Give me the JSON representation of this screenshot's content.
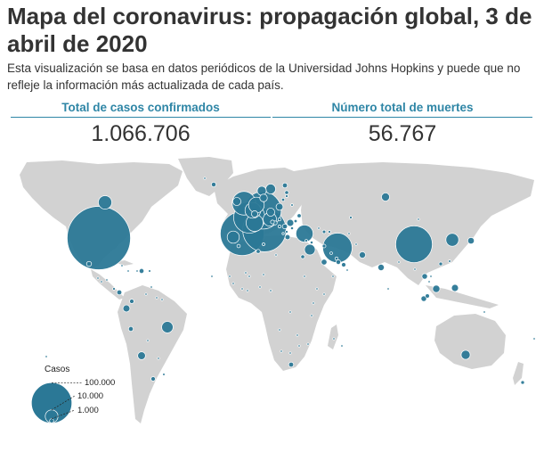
{
  "header": {
    "title": "Mapa del coronavirus: propagación global, 3 de abril de 2020",
    "subtitle": "Esta visualización se basa en datos periódicos de la Universidad Johns Hopkins y puede que no refleje la información más actualizada de cada país."
  },
  "stats": [
    {
      "label": "Total de casos confirmados",
      "value": "1.066.706"
    },
    {
      "label": "Número total de muertes",
      "value": "56.767"
    }
  ],
  "legend": {
    "title": "Casos",
    "items": [
      {
        "label": "100.000",
        "cases": 100000
      },
      {
        "label": "10.000",
        "cases": 10000
      },
      {
        "label": "1.000",
        "cases": 1000
      }
    ]
  },
  "colors": {
    "land": "#d2d2d2",
    "bubble": "#2b7896",
    "bubble_stroke": "#ffffff",
    "accent": "#2f86a6"
  },
  "map_data": {
    "projection": "equirectangular",
    "bubbles": [
      {
        "id": "usa",
        "cases": 245000
      },
      {
        "id": "italy",
        "cases": 115000
      },
      {
        "id": "spain",
        "cases": 117000
      },
      {
        "id": "germany",
        "cases": 85000
      },
      {
        "id": "china",
        "cases": 82000
      },
      {
        "id": "france",
        "cases": 60000
      },
      {
        "id": "iran",
        "cases": 53000
      },
      {
        "id": "uk",
        "cases": 34000
      },
      {
        "id": "switzerland",
        "cases": 18000
      },
      {
        "id": "turkey",
        "cases": 18000
      },
      {
        "id": "belgium",
        "cases": 15000
      },
      {
        "id": "netherlands",
        "cases": 15000
      },
      {
        "id": "canada",
        "cases": 11000
      },
      {
        "id": "austria",
        "cases": 11000
      },
      {
        "id": "south-korea",
        "cases": 10000
      },
      {
        "id": "portugal",
        "cases": 9000
      },
      {
        "id": "brazil",
        "cases": 8000
      },
      {
        "id": "israel",
        "cases": 7000
      },
      {
        "id": "sweden",
        "cases": 6000
      },
      {
        "id": "norway",
        "cases": 5000
      },
      {
        "id": "australia",
        "cases": 5000
      },
      {
        "id": "russia",
        "cases": 4000
      },
      {
        "id": "ireland",
        "cases": 4000
      },
      {
        "id": "czechia",
        "cases": 4000
      },
      {
        "id": "chile",
        "cases": 3700
      },
      {
        "id": "denmark",
        "cases": 3500
      },
      {
        "id": "poland",
        "cases": 3000
      },
      {
        "id": "ecuador",
        "cases": 3000
      },
      {
        "id": "romania",
        "cases": 3000
      },
      {
        "id": "japan",
        "cases": 2600
      },
      {
        "id": "malaysia",
        "cases": 3300
      },
      {
        "id": "philippines",
        "cases": 3000
      },
      {
        "id": "pakistan",
        "cases": 2500
      },
      {
        "id": "india",
        "cases": 2500
      },
      {
        "id": "saudi-arabia",
        "cases": 2000
      },
      {
        "id": "indonesia",
        "cases": 1900
      },
      {
        "id": "thailand",
        "cases": 1900
      },
      {
        "id": "finland",
        "cases": 1500
      },
      {
        "id": "greece",
        "cases": 1600
      },
      {
        "id": "mexico",
        "cases": 1500
      },
      {
        "id": "south-africa",
        "cases": 1500
      },
      {
        "id": "peru",
        "cases": 1400
      },
      {
        "id": "panama",
        "cases": 1500
      },
      {
        "id": "dominican-republic",
        "cases": 1400
      },
      {
        "id": "argentina",
        "cases": 1200
      },
      {
        "id": "iceland",
        "cases": 1300
      },
      {
        "id": "serbia",
        "cases": 1500
      },
      {
        "id": "colombia",
        "cases": 1200
      },
      {
        "id": "egypt",
        "cases": 900
      },
      {
        "id": "algeria",
        "cases": 1000
      },
      {
        "id": "uae",
        "cases": 1200
      },
      {
        "id": "qatar",
        "cases": 1300
      },
      {
        "id": "morocco",
        "cases": 700
      },
      {
        "id": "ukraine",
        "cases": 1000
      },
      {
        "id": "new-zealand",
        "cases": 800
      },
      {
        "id": "singapore",
        "cases": 1100
      },
      {
        "id": "croatia",
        "cases": 1000
      },
      {
        "id": "estonia",
        "cases": 900
      },
      {
        "id": "slovenia",
        "cases": 900
      },
      {
        "id": "hungary",
        "cases": 600
      },
      {
        "id": "bulgaria",
        "cases": 500
      },
      {
        "id": "belarus",
        "cases": 350
      },
      {
        "id": "lithuania",
        "cases": 600
      },
      {
        "id": "latvia",
        "cases": 450
      },
      {
        "id": "kazakhstan",
        "cases": 400
      },
      {
        "id": "iraq",
        "cases": 800
      },
      {
        "id": "lebanon",
        "cases": 500
      },
      {
        "id": "bahrain",
        "cases": 600
      },
      {
        "id": "kuwait",
        "cases": 400
      },
      {
        "id": "oman",
        "cases": 250
      },
      {
        "id": "hong-kong",
        "cases": 800
      },
      {
        "id": "taiwan",
        "cases": 350
      },
      {
        "id": "vietnam",
        "cases": 230
      },
      {
        "id": "cuba",
        "cases": 250
      },
      {
        "id": "puerto-rico",
        "cases": 380
      },
      {
        "id": "venezuela",
        "cases": 150
      },
      {
        "id": "costa-rica",
        "cases": 400
      },
      {
        "id": "honduras",
        "cases": 200
      },
      {
        "id": "bolivia",
        "cases": 130
      },
      {
        "id": "uruguay",
        "cases": 350
      },
      {
        "id": "paraguay",
        "cases": 90
      },
      {
        "id": "tunisia",
        "cases": 450
      },
      {
        "id": "cameroon",
        "cases": 300
      },
      {
        "id": "burkina-faso",
        "cases": 300
      },
      {
        "id": "cote-divoire",
        "cases": 200
      },
      {
        "id": "senegal",
        "cases": 200
      },
      {
        "id": "ghana",
        "cases": 200
      },
      {
        "id": "nigeria",
        "cases": 200
      },
      {
        "id": "kenya",
        "cases": 110
      },
      {
        "id": "mauritius",
        "cases": 200
      },
      {
        "id": "afghanistan",
        "cases": 280
      },
      {
        "id": "uzbekistan",
        "cases": 230
      },
      {
        "id": "bangladesh",
        "cases": 60
      },
      {
        "id": "sri-lanka",
        "cases": 150
      },
      {
        "id": "armenia",
        "cases": 700
      },
      {
        "id": "azerbaijan",
        "cases": 400
      },
      {
        "id": "georgia",
        "cases": 150
      },
      {
        "id": "cyprus",
        "cases": 400
      },
      {
        "id": "luxembourg",
        "cases": 2500
      },
      {
        "id": "moldova",
        "cases": 600
      },
      {
        "id": "north-macedonia",
        "cases": 450
      },
      {
        "id": "bosnia",
        "cases": 500
      },
      {
        "id": "albania",
        "cases": 300
      },
      {
        "id": "madagascar",
        "cases": 60
      },
      {
        "id": "tanzania",
        "cases": 20
      },
      {
        "id": "zambia",
        "cases": 40
      },
      {
        "id": "angola",
        "cases": 10
      },
      {
        "id": "dr-congo",
        "cases": 130
      },
      {
        "id": "sudan",
        "cases": 10
      },
      {
        "id": "ethiopia",
        "cases": 30
      },
      {
        "id": "mali",
        "cases": 40
      },
      {
        "id": "niger",
        "cases": 100
      },
      {
        "id": "guinea",
        "cases": 70
      },
      {
        "id": "mongolia",
        "cases": 14
      },
      {
        "id": "myanmar",
        "cases": 20
      },
      {
        "id": "cambodia",
        "cases": 110
      },
      {
        "id": "papua-new-guinea",
        "cases": 1
      },
      {
        "id": "fiji",
        "cases": 7
      },
      {
        "id": "greenland",
        "cases": 10
      },
      {
        "id": "jamaica",
        "cases": 50
      },
      {
        "id": "haiti",
        "cases": 20
      },
      {
        "id": "guatemala",
        "cases": 50
      },
      {
        "id": "el-salvador",
        "cases": 40
      },
      {
        "id": "trinidad",
        "cases": 100
      },
      {
        "id": "guyana",
        "cases": 20
      },
      {
        "id": "suriname",
        "cases": 10
      },
      {
        "id": "yemen",
        "cases": 1
      },
      {
        "id": "somalia",
        "cases": 7
      },
      {
        "id": "mozambique",
        "cases": 10
      },
      {
        "id": "namibia",
        "cases": 14
      },
      {
        "id": "botswana",
        "cases": 4
      },
      {
        "id": "zimbabwe",
        "cases": 9
      },
      {
        "id": "libya",
        "cases": 10
      },
      {
        "id": "cape-verde",
        "cases": 7
      },
      {
        "id": "hawaii",
        "cases": 280
      }
    ]
  }
}
